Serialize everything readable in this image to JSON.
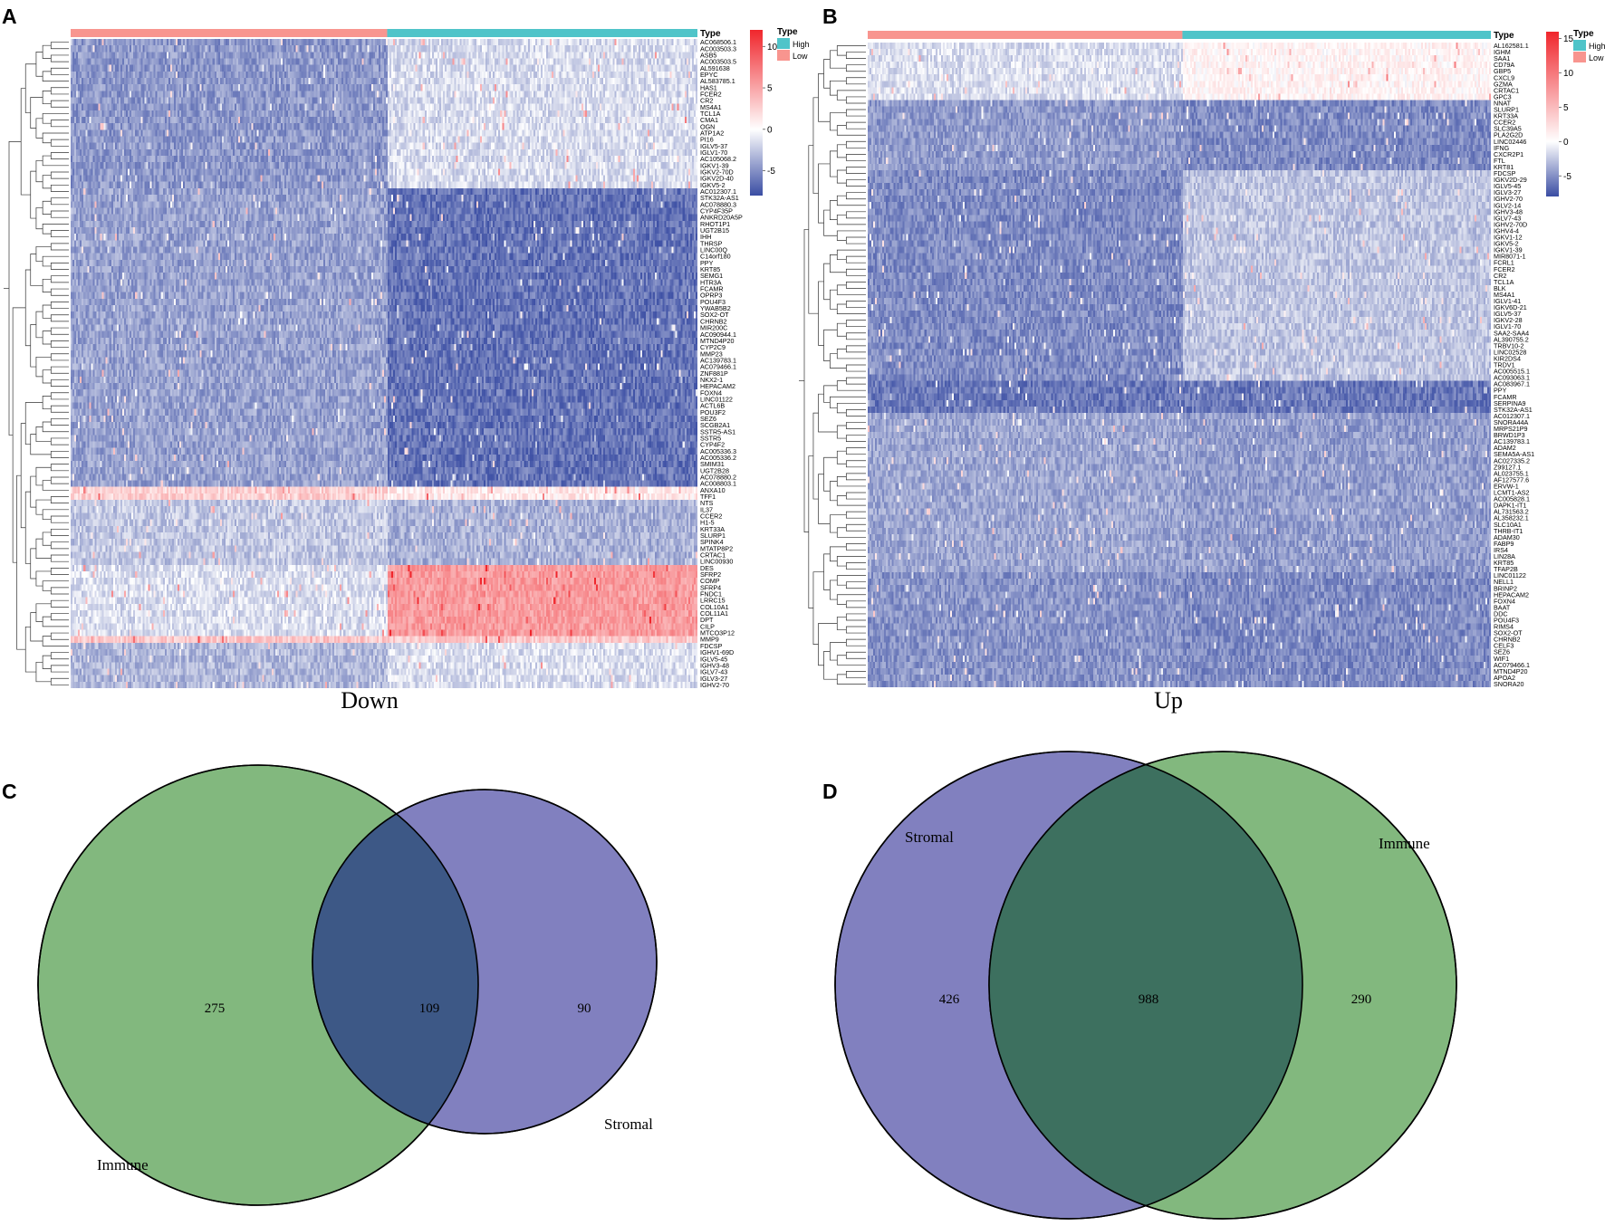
{
  "figure": {
    "panel_letters": [
      "A",
      "B",
      "C",
      "D"
    ]
  },
  "chart_data": [
    {
      "panel": "A",
      "type": "heatmap",
      "caption": "Down",
      "annotation_label": "Type",
      "annotation_groups": [
        {
          "name": "Low",
          "color": "#F8958F",
          "share": 0.505
        },
        {
          "name": "High",
          "color": "#4FC4C9",
          "share": 0.495
        }
      ],
      "legend": {
        "title": "Type",
        "items": [
          {
            "name": "High",
            "color": "#4FC4C9"
          },
          {
            "name": "Low",
            "color": "#F8958F"
          }
        ]
      },
      "colorbar": {
        "ticks": [
          10,
          5,
          0,
          -5
        ],
        "range": [
          -8,
          12
        ],
        "low_color": "#3A4DA3",
        "mid_color": "#FFFFFF",
        "high_color": "#F0262C"
      },
      "genes": [
        "AC068506.1",
        "AC003503.3",
        "ASB5",
        "AC003503.5",
        "AL591638",
        "EPYC",
        "AL583785.1",
        "HAS1",
        "FCER2",
        "CR2",
        "MS4A1",
        "TCL1A",
        "CMA1",
        "OGN",
        "ATP1A2",
        "PI16",
        "IGLV5-37",
        "IGLV1-70",
        "AC105068.2",
        "IGKV1-39",
        "IGKV2-70D",
        "IGKV2D-40",
        "IGKV5-2",
        "AC012307.1",
        "STK32A-AS1",
        "AC078880.3",
        "CYP4F35P",
        "ANKRD20A5P",
        "RHOT1P1",
        "UGT2B15",
        "IHH",
        "THRSP",
        "LINC00Q",
        "C14orf180",
        "PPY",
        "KRT85",
        "SEMG1",
        "HTR3A",
        "FCAMR",
        "OPRP3",
        "POU4F3",
        "YWAB5B2",
        "SOX2-OT",
        "CHRNB2",
        "MIR200C",
        "AC090944.1",
        "MTND4P20",
        "CYP2C9",
        "MMP23",
        "AC139783.1",
        "AC079466.1",
        "ZNF881P",
        "NKX2-1",
        "HEPACAM2",
        "FOXN4",
        "LINC01122",
        "ACTL6B",
        "POU3F2",
        "SEZ6",
        "SCGB2A1",
        "SSTR5-AS1",
        "SSTR5",
        "CYP4F2",
        "AC005336.3",
        "AC005336.2",
        "SMIM31",
        "UGT2B28",
        "AC078880.2",
        "AC008803.1",
        "ANXA10",
        "TFF1",
        "NTS",
        "IL37",
        "CCER2",
        "H1-5",
        "KRT33A",
        "SLURP1",
        "SPINK4",
        "MTATP8P2",
        "CRTAC1",
        "LINC00930",
        "DES",
        "SFRP2",
        "COMP",
        "SFRP4",
        "FNDC1",
        "LRRC15",
        "COL10A1",
        "COL11A1",
        "DPT",
        "CILP",
        "MTCO3P12",
        "MMP9",
        "FDCSP",
        "IGHV1-69D",
        "IGLV5-45",
        "IGHV3-48",
        "IGLV7-43",
        "IGLV3-27",
        "IGHV2-70"
      ]
    },
    {
      "panel": "B",
      "type": "heatmap",
      "caption": "Up",
      "annotation_label": "Type",
      "annotation_groups": [
        {
          "name": "Low",
          "color": "#F8958F",
          "share": 0.505
        },
        {
          "name": "High",
          "color": "#4FC4C9",
          "share": 0.495
        }
      ],
      "legend": {
        "title": "Type",
        "items": [
          {
            "name": "High",
            "color": "#4FC4C9"
          },
          {
            "name": "Low",
            "color": "#F8958F"
          }
        ]
      },
      "colorbar": {
        "ticks": [
          15,
          10,
          5,
          0,
          -5
        ],
        "range": [
          -8,
          16
        ],
        "low_color": "#3A4DA3",
        "mid_color": "#FFFFFF",
        "high_color": "#F0262C"
      },
      "genes": [
        "AL162581.1",
        "IGHM",
        "SAA1",
        "CD79A",
        "GBP5",
        "CXCL9",
        "GZMA",
        "CRTAC1",
        "GPC3",
        "NNAT",
        "SLURP1",
        "KRT33A",
        "CCER2",
        "SLC39A5",
        "PLA2G2D",
        "LINC02446",
        "IFNG",
        "CXCR2P1",
        "FTL",
        "KRT81",
        "FDCSP",
        "IGKV2D-29",
        "IGLV5-45",
        "IGLV3-27",
        "IGHV2-70",
        "IGLV2-14",
        "IGHV3-48",
        "IGLV7-43",
        "IGHV2-70D",
        "IGHV4-4",
        "IGKV1-12",
        "IGKV5-2",
        "IGKV1-39",
        "MIR8071-1",
        "FCRL1",
        "FCER2",
        "CR2",
        "TCL1A",
        "BLK",
        "MS4A1",
        "IGLV1-41",
        "IGKV6D-21",
        "IGLV5-37",
        "IGKV2-28",
        "IGLV1-70",
        "SAA2-SAA4",
        "AL390755.2",
        "TRBV10-2",
        "LINC02528",
        "KIR2DS4",
        "TRDV1",
        "AC005515.1",
        "AC093063.1",
        "AC083967.1",
        "PPY",
        "FCAMR",
        "SERPINA9",
        "STK32A-AS1",
        "AC012307.1",
        "SNORA44A",
        "MRPS21P9",
        "BRWD1P3",
        "AC139783.1",
        "ADAM2",
        "SEMA5A-AS1",
        "AC027335.2",
        "Z99127.1",
        "AL023755.1",
        "AF127577.6",
        "ERVW-1",
        "LCMT1-AS2",
        "AC005828.1",
        "DAPK1-IT1",
        "AL731563.2",
        "AL358232.1",
        "SLC10A1",
        "THRB-IT1",
        "ADAM30",
        "FABP9",
        "IRS4",
        "LIN28A",
        "KRT85",
        "TFAP2B",
        "LINC01122",
        "NELL1",
        "BRINP2",
        "HEPACAM2",
        "FOXN4",
        "BAAT",
        "DDC",
        "POU4F3",
        "RIMS4",
        "SOX2-OT",
        "CHRNB2",
        "CELF3",
        "SEZ6",
        "WIF1",
        "AC079466.1",
        "MTND4P20",
        "APOA2",
        "SNORA20"
      ]
    },
    {
      "panel": "C",
      "type": "venn",
      "sets": [
        {
          "name": "Immune",
          "only": 275,
          "color": "#82B87E"
        },
        {
          "name": "Stromal",
          "only": 90,
          "color": "#8180BF"
        }
      ],
      "overlap": 109,
      "overlap_color": "#3D5886"
    },
    {
      "panel": "D",
      "type": "venn",
      "sets": [
        {
          "name": "Stromal",
          "only": 426,
          "color": "#8180BF"
        },
        {
          "name": "Immune",
          "only": 290,
          "color": "#82B87E"
        }
      ],
      "overlap": 988,
      "overlap_color": "#3D705F"
    }
  ]
}
